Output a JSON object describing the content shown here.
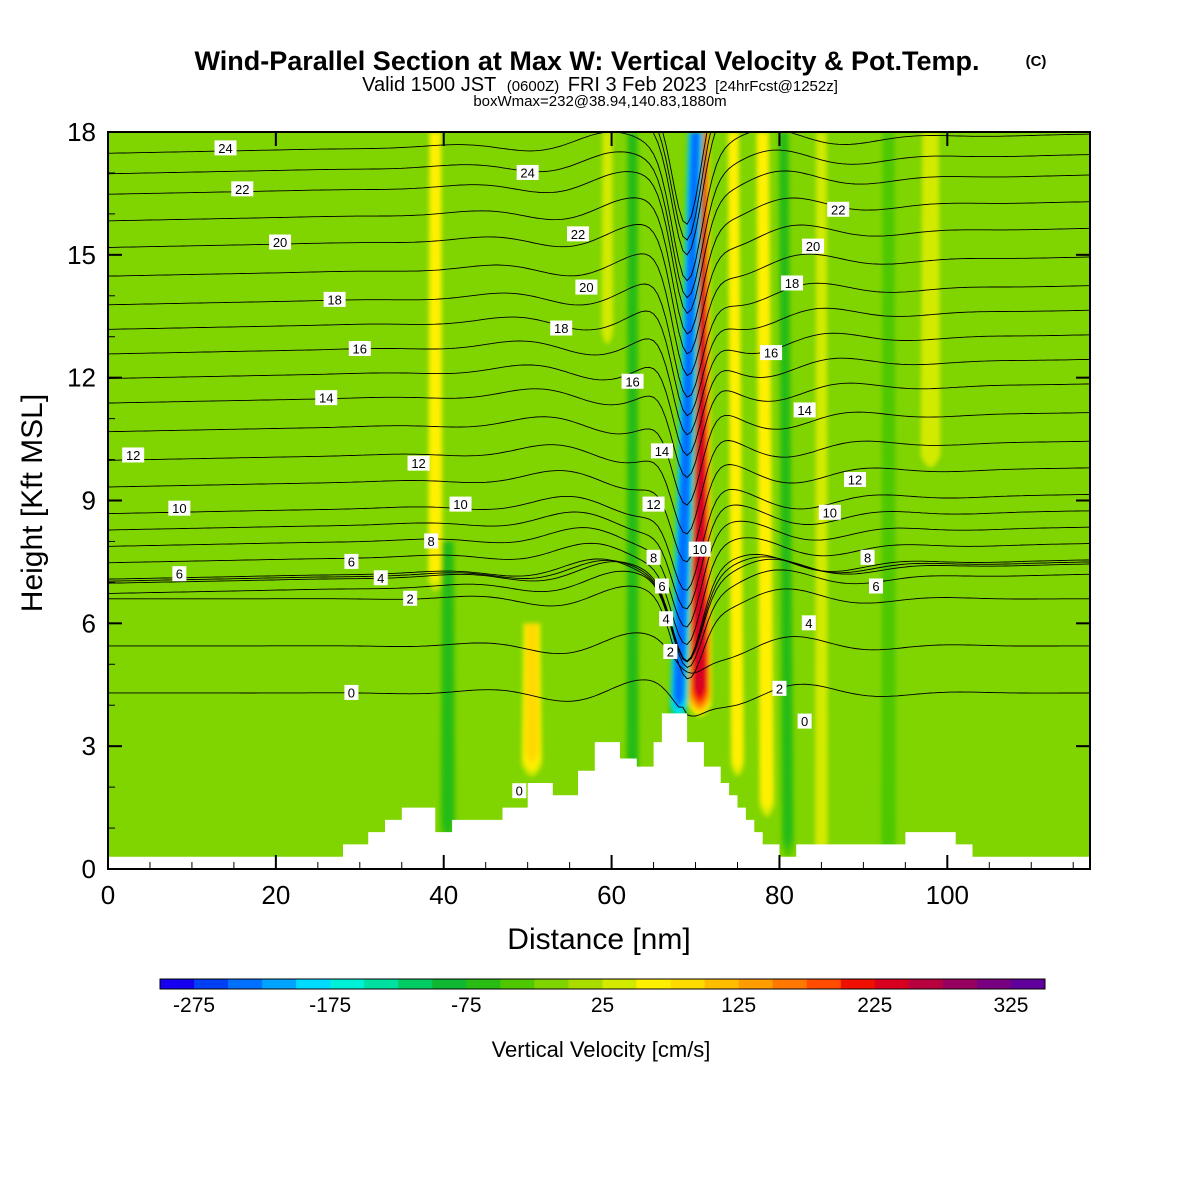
{
  "header": {
    "title": "Wind-Parallel Section at Max W: Vertical Velocity & Pot.Temp.",
    "copyright": "(C)",
    "valid_prefix": "Valid 1500 JST",
    "utc": "(0600Z)",
    "date": "FRI 3 Feb 2023",
    "forecast": "[24hrFcst@1252z]",
    "box_info": "boxWmax=232@38.94,140.83,1880m"
  },
  "chart_data": {
    "type": "heatmap",
    "xlabel": "Distance [nm]",
    "ylabel": "Height [Kft MSL]",
    "xlim": [
      0,
      117
    ],
    "ylim": [
      0,
      18
    ],
    "x_ticks": [
      0,
      20,
      40,
      60,
      80,
      100
    ],
    "y_ticks": [
      0,
      3,
      6,
      9,
      12,
      15,
      18
    ],
    "x_tick_labels": [
      "0",
      "20",
      "40",
      "60",
      "80",
      "100"
    ],
    "y_tick_labels": [
      "0",
      "3",
      "6",
      "9",
      "12",
      "15",
      "18"
    ],
    "terrain_profile": [
      [
        0,
        0.3
      ],
      [
        28,
        0.3
      ],
      [
        28,
        0.6
      ],
      [
        31,
        0.6
      ],
      [
        31,
        0.9
      ],
      [
        33,
        0.9
      ],
      [
        33,
        1.2
      ],
      [
        35,
        1.2
      ],
      [
        35,
        1.5
      ],
      [
        39,
        1.5
      ],
      [
        39,
        0.9
      ],
      [
        41,
        0.9
      ],
      [
        41,
        1.2
      ],
      [
        47,
        1.2
      ],
      [
        47,
        1.5
      ],
      [
        50,
        1.5
      ],
      [
        50,
        2.1
      ],
      [
        53,
        2.1
      ],
      [
        53,
        1.8
      ],
      [
        56,
        1.8
      ],
      [
        56,
        2.4
      ],
      [
        58,
        2.4
      ],
      [
        58,
        3.1
      ],
      [
        61,
        3.1
      ],
      [
        61,
        2.7
      ],
      [
        63,
        2.7
      ],
      [
        63,
        2.5
      ],
      [
        65,
        2.5
      ],
      [
        65,
        3.1
      ],
      [
        66,
        3.1
      ],
      [
        66,
        3.8
      ],
      [
        69,
        3.8
      ],
      [
        69,
        3.1
      ],
      [
        71,
        3.1
      ],
      [
        71,
        2.5
      ],
      [
        73,
        2.5
      ],
      [
        73,
        2.1
      ],
      [
        74,
        2.1
      ],
      [
        74,
        1.8
      ],
      [
        75,
        1.8
      ],
      [
        75,
        1.5
      ],
      [
        76,
        1.5
      ],
      [
        76,
        1.2
      ],
      [
        77,
        1.2
      ],
      [
        77,
        0.9
      ],
      [
        78,
        0.9
      ],
      [
        78,
        0.6
      ],
      [
        80,
        0.6
      ],
      [
        80,
        0.3
      ],
      [
        82,
        0.3
      ],
      [
        82,
        0.6
      ],
      [
        95,
        0.6
      ],
      [
        95,
        0.9
      ],
      [
        101,
        0.9
      ],
      [
        101,
        0.6
      ],
      [
        103,
        0.6
      ],
      [
        103,
        0.3
      ],
      [
        117,
        0.3
      ]
    ],
    "w_field": {
      "name": "Vertical Velocity",
      "units": "cm/s",
      "features": [
        {
          "kind": "updraft",
          "x_center": 70.5,
          "x_center_top": 70.5,
          "y_bottom": 4.0,
          "y_top": 18,
          "width": 2.2,
          "peak": 232
        },
        {
          "kind": "downdraft",
          "x_center": 68.0,
          "x_center_top": 70.0,
          "y_bottom": 3.8,
          "y_top": 18,
          "width": 1.8,
          "peak": -240
        },
        {
          "kind": "updraft",
          "x_center": 75.0,
          "x_center_top": 74.5,
          "y_bottom": 2.5,
          "y_top": 18,
          "width": 1.3,
          "peak": 70
        },
        {
          "kind": "updraft",
          "x_center": 78.5,
          "x_center_top": 78.0,
          "y_bottom": 1.5,
          "y_top": 18,
          "width": 1.5,
          "peak": 60
        },
        {
          "kind": "updraft",
          "x_center": 39.0,
          "x_center_top": 39.0,
          "y_bottom": 7.0,
          "y_top": 18,
          "width": 1.5,
          "peak": 50
        },
        {
          "kind": "updraft",
          "x_center": 50.5,
          "x_center_top": 50.5,
          "y_bottom": 2.5,
          "y_top": 6.0,
          "width": 2.0,
          "peak": 75
        },
        {
          "kind": "updraft",
          "x_center": 98.0,
          "x_center_top": 98.0,
          "y_bottom": 10.0,
          "y_top": 18,
          "width": 2.0,
          "peak": 40
        },
        {
          "kind": "updraft",
          "x_center": 59.5,
          "x_center_top": 59.5,
          "y_bottom": 13.0,
          "y_top": 18,
          "width": 1.2,
          "peak": 35
        },
        {
          "kind": "downdraft",
          "x_center": 62.5,
          "x_center_top": 62.5,
          "y_bottom": 1.0,
          "y_top": 18,
          "width": 1.3,
          "peak": -60
        },
        {
          "kind": "downdraft",
          "x_center": 40.5,
          "x_center_top": 40.5,
          "y_bottom": 0.8,
          "y_top": 8.0,
          "width": 1.6,
          "peak": -50
        },
        {
          "kind": "downdraft",
          "x_center": 81.0,
          "x_center_top": 80.5,
          "y_bottom": 0.5,
          "y_top": 18,
          "width": 1.3,
          "peak": -50
        },
        {
          "kind": "downdraft",
          "x_center": 93.0,
          "x_center_top": 93.0,
          "y_bottom": 0.5,
          "y_top": 18,
          "width": 1.5,
          "peak": -35
        },
        {
          "kind": "updraft",
          "x_center": 85.0,
          "x_center_top": 85.0,
          "y_bottom": 0.5,
          "y_top": 18,
          "width": 1.3,
          "peak": 35
        }
      ]
    },
    "colorbar": {
      "label": "Vertical Velocity [cm/s]",
      "vmin": -300,
      "vmax": 350,
      "step": 25,
      "colors": [
        "#1500f0",
        "#0040f5",
        "#0070ff",
        "#00a4ff",
        "#00dcff",
        "#00f0d8",
        "#00e0a0",
        "#00cc64",
        "#10b832",
        "#28bc14",
        "#50c800",
        "#80d400",
        "#aadc00",
        "#d2ea00",
        "#fff000",
        "#ffda00",
        "#ffbc00",
        "#ff9c00",
        "#ff7800",
        "#ff4c00",
        "#f01000",
        "#d80020",
        "#b80040",
        "#980060",
        "#780080",
        "#60009c"
      ],
      "tick_values": [
        -275,
        -175,
        -75,
        25,
        125,
        225,
        325
      ],
      "tick_labels": [
        "-275",
        "-175",
        "-75",
        "25",
        "125",
        "225",
        "325"
      ]
    },
    "theta_contours": {
      "name": "Pot.Temp.",
      "labels": [
        {
          "text": "24",
          "x": 14,
          "y": 17.6
        },
        {
          "text": "24",
          "x": 50,
          "y": 17.0
        },
        {
          "text": "22",
          "x": 16,
          "y": 16.6
        },
        {
          "text": "22",
          "x": 56,
          "y": 15.5
        },
        {
          "text": "22",
          "x": 87,
          "y": 16.1
        },
        {
          "text": "20",
          "x": 20.5,
          "y": 15.3
        },
        {
          "text": "20",
          "x": 57,
          "y": 14.2
        },
        {
          "text": "20",
          "x": 84,
          "y": 15.2
        },
        {
          "text": "18",
          "x": 27,
          "y": 13.9
        },
        {
          "text": "18",
          "x": 54,
          "y": 13.2
        },
        {
          "text": "18",
          "x": 81.5,
          "y": 14.3
        },
        {
          "text": "16",
          "x": 30,
          "y": 12.7
        },
        {
          "text": "16",
          "x": 62.5,
          "y": 11.9
        },
        {
          "text": "16",
          "x": 79,
          "y": 12.6
        },
        {
          "text": "14",
          "x": 26,
          "y": 11.5
        },
        {
          "text": "14",
          "x": 66,
          "y": 10.2
        },
        {
          "text": "14",
          "x": 83,
          "y": 11.2
        },
        {
          "text": "12",
          "x": 3,
          "y": 10.1
        },
        {
          "text": "12",
          "x": 37,
          "y": 9.9
        },
        {
          "text": "12",
          "x": 65,
          "y": 8.9
        },
        {
          "text": "12",
          "x": 89,
          "y": 9.5
        },
        {
          "text": "10",
          "x": 8.5,
          "y": 8.8
        },
        {
          "text": "10",
          "x": 42,
          "y": 8.9
        },
        {
          "text": "10",
          "x": 70.5,
          "y": 7.8
        },
        {
          "text": "10",
          "x": 86,
          "y": 8.7
        },
        {
          "text": "8",
          "x": 38.5,
          "y": 8.0
        },
        {
          "text": "8",
          "x": 65,
          "y": 7.6
        },
        {
          "text": "8",
          "x": 90.5,
          "y": 7.6
        },
        {
          "text": "6",
          "x": 8.5,
          "y": 7.2
        },
        {
          "text": "6",
          "x": 29,
          "y": 7.5
        },
        {
          "text": "6",
          "x": 66,
          "y": 6.9
        },
        {
          "text": "6",
          "x": 91.5,
          "y": 6.9
        },
        {
          "text": "4",
          "x": 32.5,
          "y": 7.1
        },
        {
          "text": "4",
          "x": 66.5,
          "y": 6.1
        },
        {
          "text": "4",
          "x": 83.5,
          "y": 6.0
        },
        {
          "text": "2",
          "x": 36,
          "y": 6.6
        },
        {
          "text": "2",
          "x": 67,
          "y": 5.3
        },
        {
          "text": "2",
          "x": 80,
          "y": 4.4
        },
        {
          "text": "0",
          "x": 29,
          "y": 4.3
        },
        {
          "text": "0",
          "x": 49,
          "y": 1.9
        },
        {
          "text": "0",
          "x": 83,
          "y": 3.6
        }
      ]
    }
  }
}
